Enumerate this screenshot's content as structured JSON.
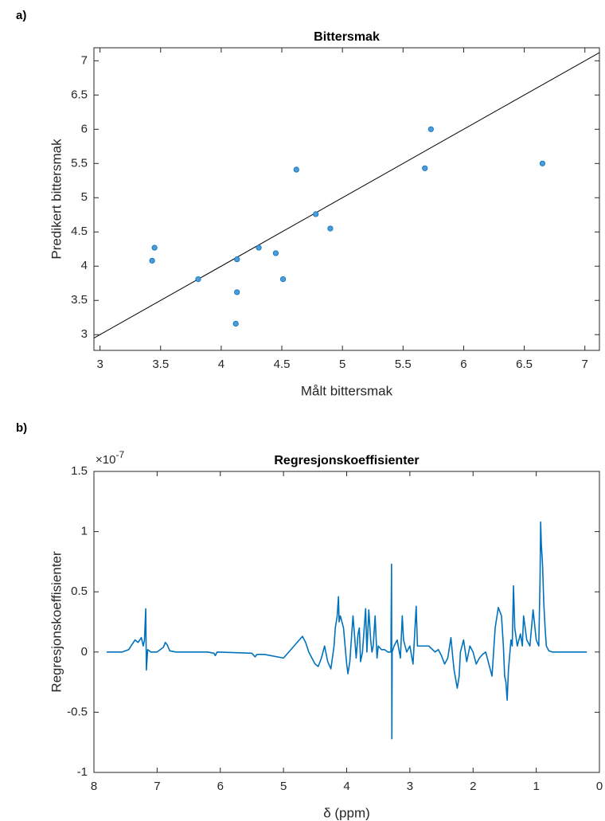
{
  "chart_data": [
    {
      "type": "scatter",
      "panel_label": "a)",
      "title": "Bittersmak",
      "x_label": "Målt bittersmak",
      "y_label": "Predikert bittersmak",
      "x": [
        3.43,
        3.45,
        3.81,
        4.13,
        4.13,
        4.12,
        4.31,
        4.45,
        4.51,
        4.62,
        4.78,
        4.9,
        5.68,
        5.73,
        6.65
      ],
      "values": [
        4.08,
        4.27,
        3.81,
        4.1,
        3.62,
        3.16,
        4.27,
        4.19,
        3.81,
        5.41,
        4.76,
        4.55,
        5.43,
        6.0,
        5.5
      ],
      "color": "#4f9bd9",
      "edge_color": "#0072bd",
      "identity_line": true,
      "xlim": [
        2.95,
        7.12
      ],
      "ylim": [
        2.77,
        7.19
      ],
      "xticks": [
        3,
        3.5,
        4,
        4.5,
        5,
        5.5,
        6,
        6.5,
        7
      ],
      "yticks": [
        3,
        3.5,
        4,
        4.5,
        5,
        5.5,
        6,
        6.5,
        7
      ]
    },
    {
      "type": "line",
      "panel_label": "b)",
      "title": "Regresjonskoeffisienter",
      "x_label": "δ (ppm)",
      "y_label": "Regresjonskoeffisienter",
      "y_multiplier": {
        "base": "×10",
        "exponent": "-7"
      },
      "color": "#0072bd",
      "x": [
        7.8,
        7.55,
        7.45,
        7.4,
        7.35,
        7.3,
        7.25,
        7.22,
        7.2,
        7.18,
        7.17,
        7.15,
        7.1,
        7.0,
        6.9,
        6.87,
        6.84,
        6.8,
        6.7,
        6.5,
        6.2,
        6.1,
        6.08,
        6.05,
        5.5,
        5.45,
        5.42,
        5.3,
        5.0,
        4.7,
        4.65,
        4.6,
        4.55,
        4.5,
        4.45,
        4.4,
        4.35,
        4.3,
        4.25,
        4.2,
        4.18,
        4.15,
        4.13,
        4.12,
        4.1,
        4.05,
        4.0,
        3.98,
        3.95,
        3.92,
        3.9,
        3.87,
        3.85,
        3.82,
        3.8,
        3.78,
        3.75,
        3.7,
        3.68,
        3.65,
        3.62,
        3.6,
        3.58,
        3.55,
        3.52,
        3.5,
        3.45,
        3.4,
        3.35,
        3.3,
        3.29,
        3.285,
        3.28,
        3.25,
        3.2,
        3.15,
        3.12,
        3.1,
        3.05,
        3.0,
        2.95,
        2.9,
        2.88,
        2.8,
        2.7,
        2.6,
        2.55,
        2.5,
        2.45,
        2.4,
        2.35,
        2.32,
        2.3,
        2.25,
        2.22,
        2.2,
        2.15,
        2.1,
        2.05,
        2.0,
        1.95,
        1.9,
        1.85,
        1.8,
        1.75,
        1.7,
        1.65,
        1.6,
        1.55,
        1.52,
        1.5,
        1.48,
        1.46,
        1.44,
        1.4,
        1.38,
        1.36,
        1.34,
        1.3,
        1.25,
        1.22,
        1.2,
        1.15,
        1.1,
        1.05,
        1.0,
        0.96,
        0.94,
        0.93,
        0.92,
        0.9,
        0.88,
        0.86,
        0.84,
        0.8,
        0.75,
        0.5,
        0.2
      ],
      "values": [
        0,
        0,
        0.02,
        0.06,
        0.1,
        0.08,
        0.12,
        0.05,
        0.1,
        0.36,
        -0.15,
        0.02,
        0,
        0,
        0.04,
        0.08,
        0.06,
        0.01,
        0,
        0,
        0,
        -0.01,
        -0.03,
        0,
        -0.01,
        -0.04,
        -0.02,
        -0.02,
        -0.05,
        0.13,
        0.08,
        0,
        -0.05,
        -0.1,
        -0.12,
        -0.05,
        0.05,
        -0.08,
        -0.14,
        0.05,
        0.2,
        0.3,
        0.46,
        0.25,
        0.3,
        0.2,
        -0.1,
        -0.18,
        -0.08,
        0.15,
        0.3,
        0.1,
        -0.05,
        0.15,
        0.2,
        -0.08,
        0,
        0.36,
        0,
        0.35,
        0.1,
        0,
        0.05,
        0.3,
        -0.05,
        0.05,
        0.02,
        0.02,
        0,
        0,
        0.73,
        -0.72,
        0,
        0.05,
        0.1,
        -0.05,
        0.3,
        0.1,
        0,
        0.05,
        -0.1,
        0.38,
        0.05,
        0.05,
        0.05,
        0,
        0.02,
        -0.03,
        -0.1,
        -0.05,
        0.12,
        -0.05,
        -0.15,
        -0.3,
        -0.2,
        0,
        0.1,
        -0.08,
        0.05,
        0,
        -0.1,
        -0.05,
        -0.02,
        0,
        -0.1,
        -0.2,
        0.2,
        0.37,
        0.3,
        0.05,
        -0.2,
        -0.25,
        -0.4,
        -0.15,
        0.1,
        0.05,
        0.55,
        0.2,
        0.05,
        0.15,
        0.05,
        0.3,
        0.1,
        0.05,
        0.35,
        0.1,
        0.05,
        0.6,
        1.08,
        0.9,
        0.72,
        0.4,
        0.2,
        0.05,
        0.01,
        0,
        0,
        0
      ],
      "xlim": [
        8,
        0
      ],
      "ylim": [
        -1,
        1.5
      ],
      "xticks": [
        8,
        7,
        6,
        5,
        4,
        3,
        2,
        1,
        0
      ],
      "yticks": [
        -1,
        -0.5,
        0,
        0.5,
        1,
        1.5
      ]
    }
  ]
}
